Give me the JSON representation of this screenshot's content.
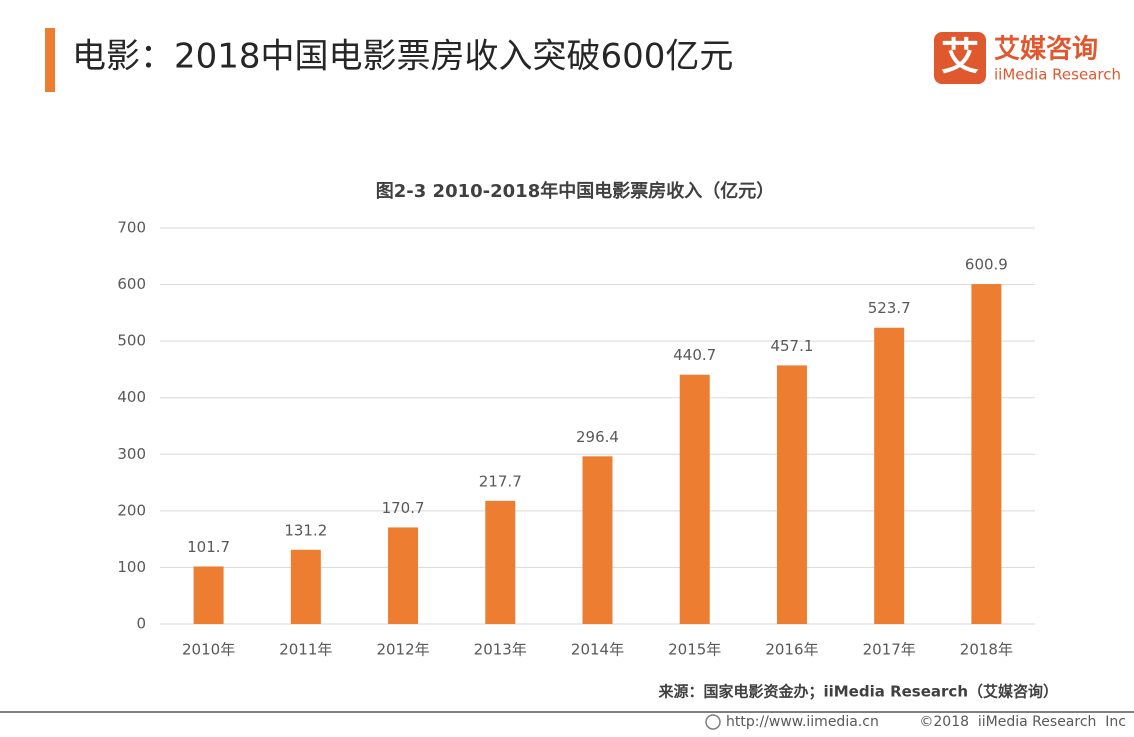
{
  "header": {
    "title": "电影：2018中国电影票房收入突破600亿元"
  },
  "logo": {
    "mark": "艾",
    "name": "艾媒咨询",
    "subname": "iiMedia Research"
  },
  "chart_data": {
    "type": "bar",
    "title": "图2-3 2010-2018年中国电影票房收入（亿元）",
    "categories": [
      "2010年",
      "2011年",
      "2012年",
      "2013年",
      "2014年",
      "2015年",
      "2016年",
      "2017年",
      "2018年"
    ],
    "values": [
      101.7,
      131.2,
      170.7,
      217.7,
      296.4,
      440.7,
      457.1,
      523.7,
      600.9
    ],
    "color": "#ed7d31",
    "ylim": [
      0,
      700
    ],
    "yticks": [
      0,
      100,
      200,
      300,
      400,
      500,
      600,
      700
    ],
    "grid": true
  },
  "source": "来源：国家电影资金办；iiMedia Research（艾媒咨询）",
  "footer": {
    "url": "http://www.iimedia.cn",
    "copyright": "©2018  iiMedia Research  Inc"
  }
}
